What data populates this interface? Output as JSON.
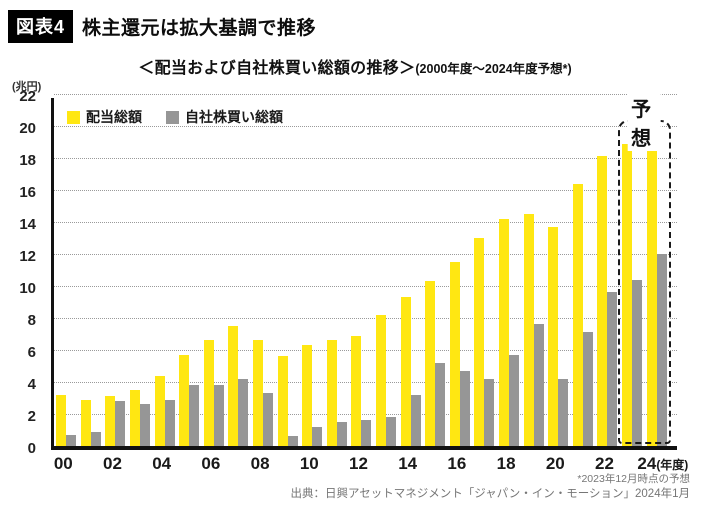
{
  "header": {
    "badge": "図表4",
    "title": "株主還元は拡大基調で推移"
  },
  "subtitle": {
    "main": "＜配当および自社株買い総額の推移＞",
    "paren": "(2000年度～2024年度予想*)"
  },
  "y_axis_unit": "(兆円)",
  "forecast_label": "予想",
  "x_axis_suffix": "(年度)",
  "footnote": "*2023年12月時点の予想",
  "source": "出典：日興アセットマネジメント「ジャパン・イン・モーション」2024年1月",
  "colors": {
    "dividend": "#ffe712",
    "buyback": "#969696",
    "axis": "#111111",
    "grid": "#9a9a9a"
  },
  "chart_data": {
    "type": "bar",
    "title": "＜配当および自社株買い総額の推移＞(2000年度～2024年度予想*)",
    "categories": [
      "00",
      "01",
      "02",
      "03",
      "04",
      "05",
      "06",
      "07",
      "08",
      "09",
      "10",
      "11",
      "12",
      "13",
      "14",
      "15",
      "16",
      "17",
      "18",
      "19",
      "20",
      "21",
      "22",
      "23",
      "24"
    ],
    "x_ticks_shown": [
      "00",
      "02",
      "04",
      "06",
      "08",
      "10",
      "12",
      "14",
      "16",
      "18",
      "20",
      "22",
      "24"
    ],
    "series": [
      {
        "name": "配当総額",
        "color": "#ffe712",
        "values": [
          3.2,
          2.9,
          3.1,
          3.5,
          4.4,
          5.7,
          6.6,
          7.5,
          6.6,
          5.6,
          6.3,
          6.6,
          6.9,
          8.2,
          9.3,
          10.3,
          11.5,
          13.0,
          14.2,
          14.5,
          13.7,
          16.4,
          18.1,
          18.9,
          19.9
        ]
      },
      {
        "name": "自社株買い総額",
        "color": "#969696",
        "values": [
          0.7,
          0.9,
          2.8,
          2.6,
          2.9,
          3.8,
          3.8,
          4.2,
          3.3,
          0.6,
          1.2,
          1.5,
          1.6,
          1.8,
          3.2,
          5.2,
          4.7,
          4.2,
          5.7,
          7.6,
          4.2,
          7.1,
          9.6,
          10.4,
          12.0
        ]
      }
    ],
    "ylabel": "(兆円)",
    "ylim": [
      0,
      22
    ],
    "ytick_step": 2,
    "grid": "horizontal-dotted",
    "legend_position": "top-left-inside",
    "forecast_categories": [
      "23",
      "24"
    ],
    "unit": "兆円"
  }
}
